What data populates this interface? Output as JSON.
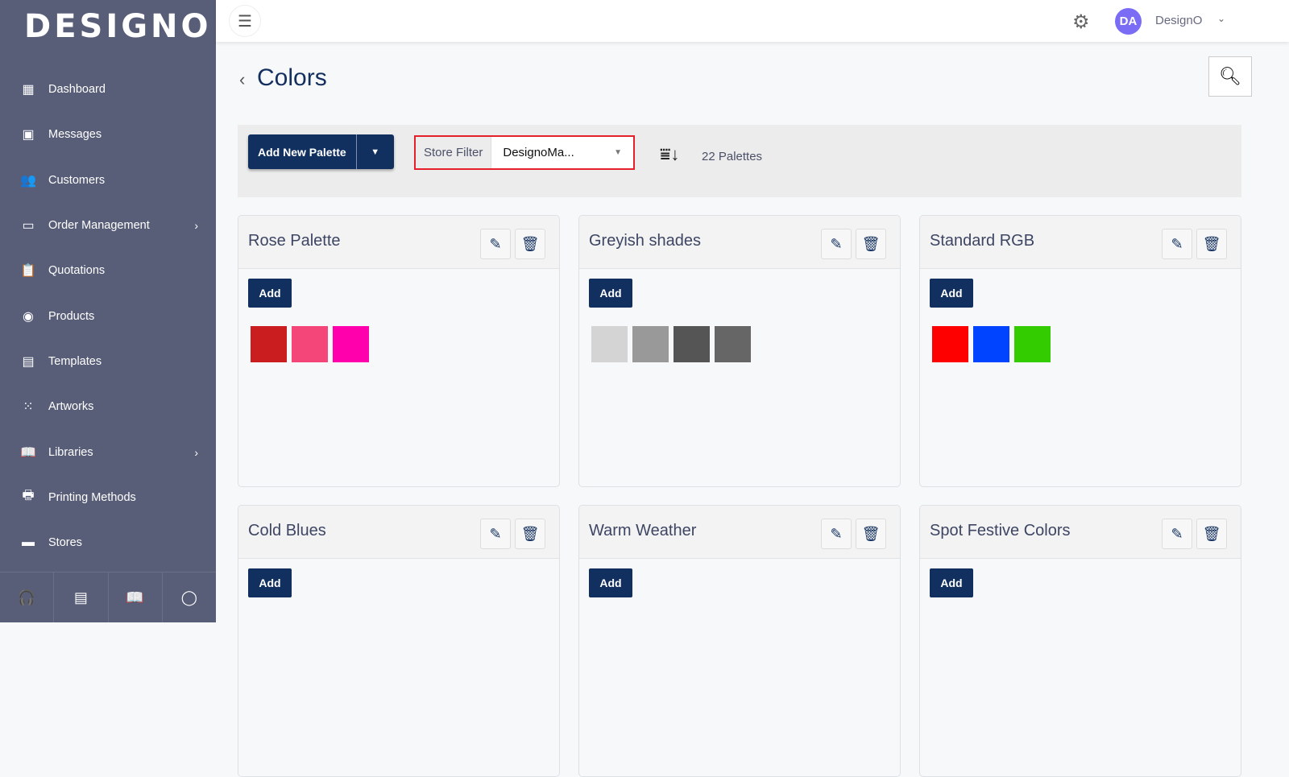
{
  "sidebar": {
    "logo": "DESIGNO",
    "items": [
      {
        "label": "Dashboard",
        "icon": "dashboard-icon",
        "glyph": "▦"
      },
      {
        "label": "Messages",
        "icon": "messages-icon",
        "glyph": "▣"
      },
      {
        "label": "Customers",
        "icon": "customers-icon",
        "glyph": "👥"
      },
      {
        "label": "Order Management",
        "icon": "card-icon",
        "glyph": "▭",
        "chevron": true
      },
      {
        "label": "Quotations",
        "icon": "clipboard-icon",
        "glyph": "📋"
      },
      {
        "label": "Products",
        "icon": "disc-icon",
        "glyph": "◉"
      },
      {
        "label": "Templates",
        "icon": "template-icon",
        "glyph": "▤"
      },
      {
        "label": "Artworks",
        "icon": "dots-icon",
        "glyph": "⁙"
      },
      {
        "label": "Libraries",
        "icon": "book-icon",
        "glyph": "📖",
        "chevron": true
      },
      {
        "label": "Printing Methods",
        "icon": "printer-icon",
        "glyph": "🖶"
      },
      {
        "label": "Stores",
        "icon": "store-icon",
        "glyph": "▬"
      }
    ],
    "footer": [
      "headset-icon",
      "chat-icon",
      "book-icon",
      "whatsapp-icon"
    ]
  },
  "header": {
    "avatar": "DA",
    "user": "DesignO"
  },
  "page": {
    "title": "Colors"
  },
  "toolbar": {
    "add_label": "Add New Palette",
    "filter_label": "Store Filter",
    "filter_value": "DesignoMa...",
    "count": "22 Palettes"
  },
  "palettes": [
    {
      "name": "Rose Palette",
      "add": "Add",
      "colors": [
        "#c91d1f",
        "#f5467a",
        "#ff00ac"
      ]
    },
    {
      "name": "Greyish shades",
      "add": "Add",
      "colors": [
        "#d4d4d4",
        "#999999",
        "#555555",
        "#666666"
      ]
    },
    {
      "name": "Standard RGB",
      "add": "Add",
      "colors": [
        "#ff0000",
        "#0044ff",
        "#33cc00"
      ]
    },
    {
      "name": "Cold Blues",
      "add": "Add",
      "colors": []
    },
    {
      "name": "Warm Weather",
      "add": "Add",
      "colors": []
    },
    {
      "name": "Spot Festive Colors",
      "add": "Add",
      "colors": []
    }
  ],
  "colors": {
    "primary": "#12305f",
    "sidebar": "#585d78",
    "highlight": "#e5202a"
  }
}
